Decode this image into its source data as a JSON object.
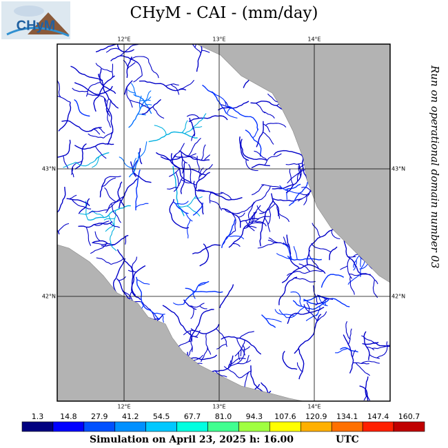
{
  "title": "CHyM - CAI - (mm/day)",
  "logo": {
    "text": "CHyM"
  },
  "side_note": "Run on operational domain number 03",
  "map": {
    "lon_labels": [
      "12°E",
      "13°E",
      "14°E"
    ],
    "lat_labels": [
      "43°N",
      "42°N"
    ]
  },
  "colorbar": {
    "labels": [
      "1.3",
      "14.8",
      "27.9",
      "41.2",
      "54.5",
      "67.7",
      "81.0",
      "94.3",
      "107.6",
      "120.9",
      "134.1",
      "147.4",
      "160.7"
    ],
    "colors": [
      "#000080",
      "#0000ff",
      "#0050ff",
      "#0090ff",
      "#00c8ff",
      "#00ffe0",
      "#40ff90",
      "#a0ff40",
      "#ffff00",
      "#ffb000",
      "#ff7000",
      "#ff2000",
      "#c00000"
    ]
  },
  "footer": {
    "simulation": "Simulation on April 23, 2025 h: 16.00",
    "timezone": "UTC"
  }
}
